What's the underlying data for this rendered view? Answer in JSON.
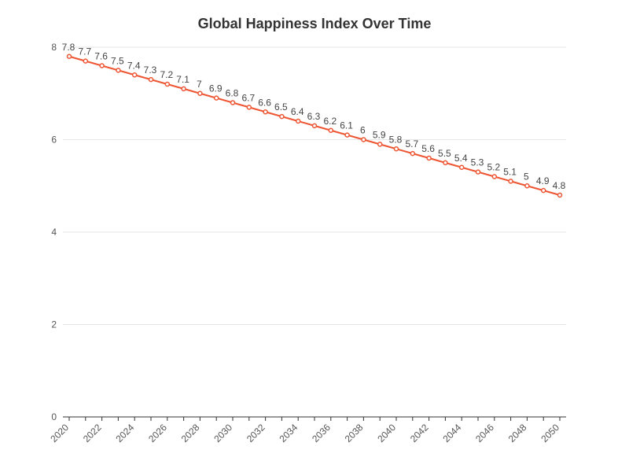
{
  "chart_data": {
    "type": "line",
    "title": "Global Happiness Index Over Time",
    "xlabel": "",
    "ylabel": "",
    "x": [
      2020,
      2021,
      2022,
      2023,
      2024,
      2025,
      2026,
      2027,
      2028,
      2029,
      2030,
      2031,
      2032,
      2033,
      2034,
      2035,
      2036,
      2037,
      2038,
      2039,
      2040,
      2041,
      2042,
      2043,
      2044,
      2045,
      2046,
      2047,
      2048,
      2049,
      2050
    ],
    "x_tick_labels": [
      "2020",
      "2022",
      "2024",
      "2026",
      "2028",
      "2030",
      "2032",
      "2034",
      "2036",
      "2038",
      "2040",
      "2042",
      "2044",
      "2046",
      "2048",
      "2050"
    ],
    "series": [
      {
        "values": [
          7.8,
          7.7,
          7.6,
          7.5,
          7.4,
          7.3,
          7.2,
          7.1,
          7,
          6.9,
          6.8,
          6.7,
          6.6,
          6.5,
          6.4,
          6.3,
          6.2,
          6.1,
          6,
          5.9,
          5.8,
          5.7,
          5.6,
          5.5,
          5.4,
          5.3,
          5.2,
          5.1,
          5,
          4.9,
          4.8
        ],
        "color": "#ee5533"
      }
    ],
    "ylim": [
      0,
      8
    ],
    "y_ticks": [
      0,
      2,
      4,
      6,
      8
    ],
    "grid": "horizontal",
    "legend": "none"
  }
}
